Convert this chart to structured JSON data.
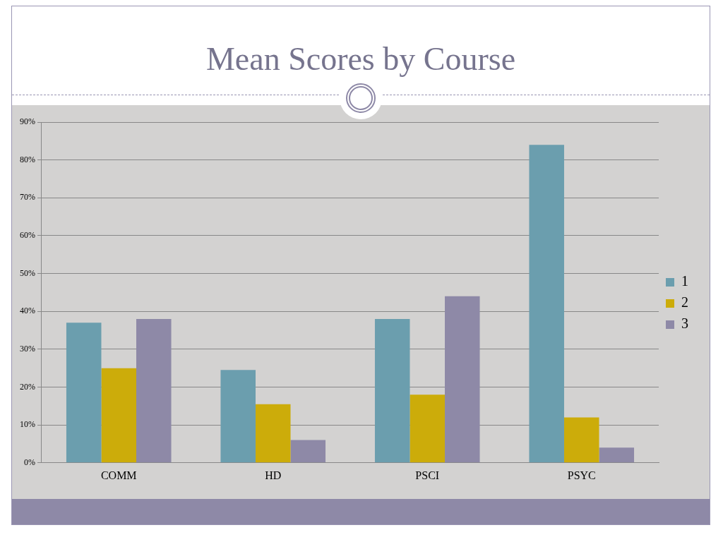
{
  "chart_data": {
    "type": "bar",
    "title": "Mean Scores by Course",
    "categories": [
      "COMM",
      "HD",
      "PSCI",
      "PSYC"
    ],
    "series": [
      {
        "name": "1",
        "color": "#6b9eae",
        "values": [
          37,
          24.5,
          38,
          84
        ]
      },
      {
        "name": "2",
        "color": "#ccac0a",
        "values": [
          25,
          15.5,
          18,
          12
        ]
      },
      {
        "name": "3",
        "color": "#8e89a7",
        "values": [
          38,
          6,
          44,
          4
        ]
      }
    ],
    "ylim": [
      0,
      90
    ],
    "yticks": [
      {
        "value": 0,
        "label": "0%"
      },
      {
        "value": 10,
        "label": "10%"
      },
      {
        "value": 20,
        "label": "20%"
      },
      {
        "value": 30,
        "label": "30%"
      },
      {
        "value": 40,
        "label": "40%"
      },
      {
        "value": 50,
        "label": "50%"
      },
      {
        "value": 60,
        "label": "60%"
      },
      {
        "value": 70,
        "label": "70%"
      },
      {
        "value": 80,
        "label": "80%"
      },
      {
        "value": 90,
        "label": "90%"
      }
    ],
    "grid": "y",
    "legend": "right"
  }
}
